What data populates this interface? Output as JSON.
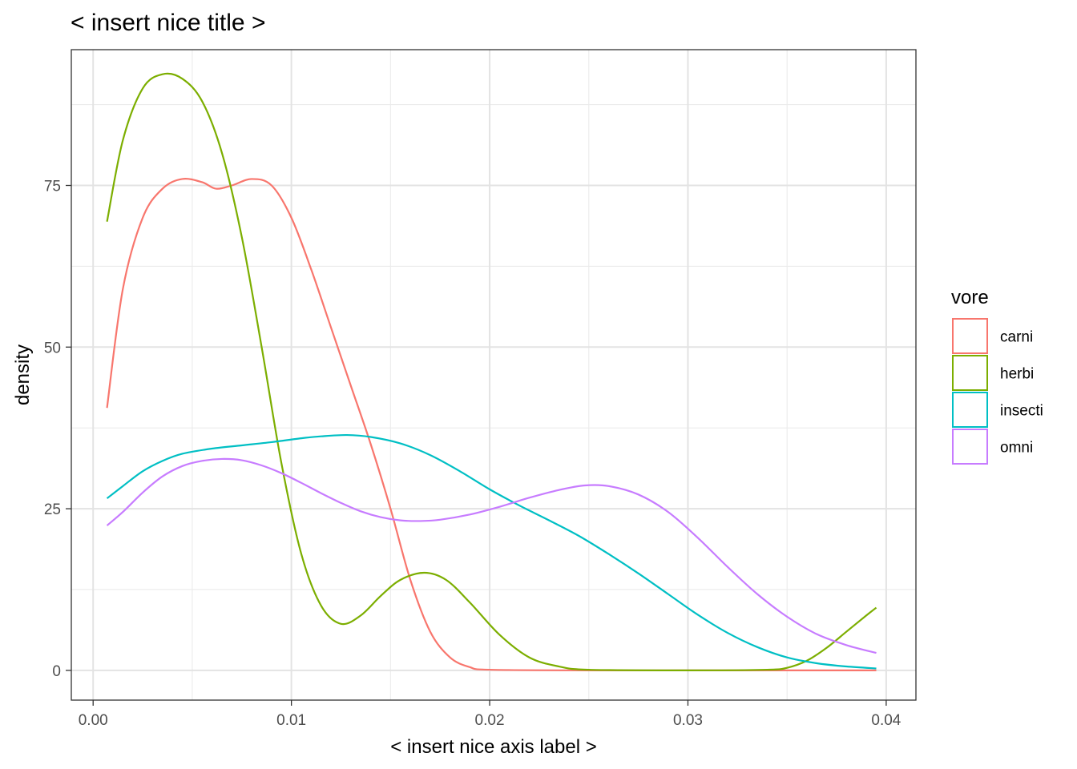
{
  "chart_data": {
    "type": "line",
    "title": "< insert nice title >",
    "xlabel": "< insert nice axis label >",
    "ylabel": "density",
    "xlim": [
      -0.0011,
      0.0415
    ],
    "ylim": [
      -4.6,
      96
    ],
    "x_ticks": [
      0.0,
      0.01,
      0.02,
      0.03,
      0.04
    ],
    "x_tick_labels": [
      "0.00",
      "0.01",
      "0.02",
      "0.03",
      "0.04"
    ],
    "y_ticks": [
      0,
      25,
      50,
      75
    ],
    "y_tick_labels": [
      "0",
      "25",
      "50",
      "75"
    ],
    "grid": true,
    "legend": {
      "title": "vore",
      "position": "right"
    },
    "series": [
      {
        "name": "carni",
        "color": "#F8766D",
        "points": [
          [
            0.0007,
            40.6
          ],
          [
            0.0015,
            59
          ],
          [
            0.0025,
            70
          ],
          [
            0.0035,
            74.5
          ],
          [
            0.0045,
            76
          ],
          [
            0.0055,
            75.5
          ],
          [
            0.0062,
            74.5
          ],
          [
            0.007,
            75
          ],
          [
            0.008,
            76
          ],
          [
            0.009,
            75
          ],
          [
            0.01,
            70
          ],
          [
            0.011,
            62
          ],
          [
            0.012,
            53
          ],
          [
            0.013,
            44
          ],
          [
            0.014,
            35
          ],
          [
            0.015,
            25
          ],
          [
            0.016,
            14
          ],
          [
            0.017,
            6
          ],
          [
            0.018,
            2
          ],
          [
            0.019,
            0.5
          ],
          [
            0.02,
            0.1
          ],
          [
            0.025,
            0
          ],
          [
            0.03,
            0
          ],
          [
            0.035,
            0
          ],
          [
            0.0395,
            0
          ]
        ]
      },
      {
        "name": "herbi",
        "color": "#7CAE00",
        "points": [
          [
            0.0007,
            69.4
          ],
          [
            0.0015,
            82
          ],
          [
            0.0025,
            90
          ],
          [
            0.0035,
            92.2
          ],
          [
            0.0045,
            91.5
          ],
          [
            0.0055,
            88
          ],
          [
            0.0065,
            80
          ],
          [
            0.0075,
            67
          ],
          [
            0.0085,
            50
          ],
          [
            0.0095,
            32
          ],
          [
            0.0105,
            18
          ],
          [
            0.0115,
            10
          ],
          [
            0.0125,
            7.2
          ],
          [
            0.0135,
            8.5
          ],
          [
            0.0145,
            11.5
          ],
          [
            0.0155,
            14
          ],
          [
            0.0167,
            15.1
          ],
          [
            0.0178,
            14
          ],
          [
            0.019,
            10.5
          ],
          [
            0.0205,
            5.5
          ],
          [
            0.022,
            2
          ],
          [
            0.0235,
            0.6
          ],
          [
            0.025,
            0.1
          ],
          [
            0.03,
            0
          ],
          [
            0.034,
            0.1
          ],
          [
            0.035,
            0.4
          ],
          [
            0.036,
            1.5
          ],
          [
            0.037,
            3.5
          ],
          [
            0.038,
            6
          ],
          [
            0.039,
            8.5
          ],
          [
            0.0395,
            9.7
          ]
        ]
      },
      {
        "name": "insecti",
        "color": "#00BFC4",
        "points": [
          [
            0.0007,
            26.6
          ],
          [
            0.0015,
            28.5
          ],
          [
            0.0025,
            30.8
          ],
          [
            0.0035,
            32.4
          ],
          [
            0.0045,
            33.5
          ],
          [
            0.006,
            34.3
          ],
          [
            0.0075,
            34.8
          ],
          [
            0.009,
            35.3
          ],
          [
            0.0105,
            35.9
          ],
          [
            0.0115,
            36.2
          ],
          [
            0.0128,
            36.4
          ],
          [
            0.014,
            36.1
          ],
          [
            0.0155,
            35.1
          ],
          [
            0.017,
            33.3
          ],
          [
            0.0185,
            30.8
          ],
          [
            0.02,
            28
          ],
          [
            0.0215,
            25.5
          ],
          [
            0.023,
            23.2
          ],
          [
            0.0245,
            20.8
          ],
          [
            0.026,
            18
          ],
          [
            0.0275,
            15
          ],
          [
            0.029,
            11.8
          ],
          [
            0.0305,
            8.6
          ],
          [
            0.032,
            5.8
          ],
          [
            0.0335,
            3.6
          ],
          [
            0.035,
            2
          ],
          [
            0.0365,
            1.1
          ],
          [
            0.038,
            0.6
          ],
          [
            0.0395,
            0.3
          ]
        ]
      },
      {
        "name": "omni",
        "color": "#C77CFF",
        "points": [
          [
            0.0007,
            22.4
          ],
          [
            0.0015,
            24.5
          ],
          [
            0.0025,
            27.5
          ],
          [
            0.0035,
            30
          ],
          [
            0.0045,
            31.6
          ],
          [
            0.0055,
            32.4
          ],
          [
            0.0065,
            32.7
          ],
          [
            0.0075,
            32.5
          ],
          [
            0.0085,
            31.7
          ],
          [
            0.0095,
            30.5
          ],
          [
            0.0105,
            29
          ],
          [
            0.0115,
            27.4
          ],
          [
            0.0125,
            25.9
          ],
          [
            0.0135,
            24.6
          ],
          [
            0.0145,
            23.7
          ],
          [
            0.0155,
            23.2
          ],
          [
            0.0165,
            23.1
          ],
          [
            0.0175,
            23.3
          ],
          [
            0.019,
            24.1
          ],
          [
            0.0205,
            25.3
          ],
          [
            0.022,
            26.7
          ],
          [
            0.0235,
            27.9
          ],
          [
            0.0248,
            28.6
          ],
          [
            0.026,
            28.5
          ],
          [
            0.0275,
            27.2
          ],
          [
            0.029,
            24.5
          ],
          [
            0.0305,
            20.5
          ],
          [
            0.032,
            16
          ],
          [
            0.0335,
            11.8
          ],
          [
            0.035,
            8.3
          ],
          [
            0.0365,
            5.6
          ],
          [
            0.038,
            3.9
          ],
          [
            0.0395,
            2.7
          ]
        ]
      }
    ]
  }
}
